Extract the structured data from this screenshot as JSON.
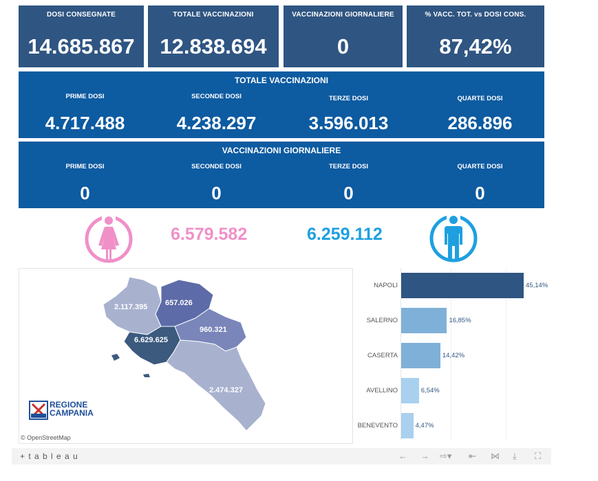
{
  "kpis": [
    {
      "label": "DOSI  CONSEGNATE",
      "value": "14.685.867"
    },
    {
      "label": "TOTALE VACCINAZIONI",
      "value": "12.838.694"
    },
    {
      "label": "VACCINAZIONI GIORNALIERE",
      "value": "0"
    },
    {
      "label": "% VACC. TOT. vs DOSI CONS.",
      "value": "87,42%"
    }
  ],
  "totale": {
    "title": "TOTALE VACCINAZIONI",
    "cells": [
      {
        "label": "PRIME DOSI",
        "value": "4.717.488"
      },
      {
        "label": "SECONDE DOSI",
        "value": "4.238.297"
      },
      {
        "label": "TERZE DOSI",
        "value": "3.596.013"
      },
      {
        "label": "QUARTE DOSI",
        "value": "286.896"
      }
    ]
  },
  "giornaliere": {
    "title": "VACCINAZIONI GIORNALIERE",
    "cells": [
      {
        "label": "PRIME DOSI",
        "value": "0"
      },
      {
        "label": "SECONDE DOSI",
        "value": "0"
      },
      {
        "label": "TERZE DOSI",
        "value": "0"
      },
      {
        "label": "QUARTE DOSI",
        "value": "0"
      }
    ]
  },
  "gender": {
    "female_value": "6.579.582",
    "male_value": "6.259.112",
    "female_color": "#f090c8",
    "male_color": "#1ea0e0"
  },
  "map": {
    "labels": {
      "caserta": "2.117.395",
      "benevento": "657.026",
      "avellino": "960.321",
      "napoli": "6.629.625",
      "salerno": "2.474.327"
    },
    "logo_line1": "REGIONE",
    "logo_line2": "CAMPANIA",
    "attribution": "© OpenStreetMap"
  },
  "chart_data": {
    "type": "bar",
    "orientation": "horizontal",
    "categories": [
      "NAPOLI",
      "SALERNO",
      "CASERTA",
      "AVELLINO",
      "BENEVENTO"
    ],
    "values": [
      45.14,
      16.85,
      14.42,
      6.54,
      4.47
    ],
    "labels": [
      "45,14%",
      "16,85%",
      "14,42%",
      "6,54%",
      "4,47%"
    ],
    "colors": [
      "#2f5582",
      "#7fb0d8",
      "#7fb0d8",
      "#a9d0ee",
      "#a9d0ee"
    ],
    "xlim": [
      0,
      50
    ]
  },
  "toolbar": {
    "brand": "+ t a b l e a u"
  }
}
